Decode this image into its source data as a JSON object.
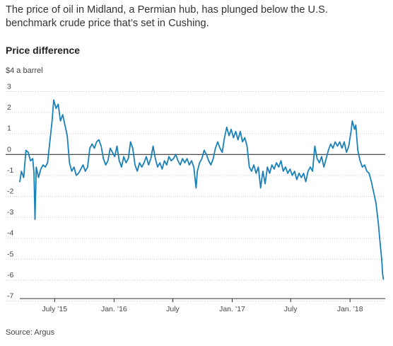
{
  "headline": {
    "dek": "The price of oil in Midland, a Permian hub, has plunged below the U.S. benchmark crude price that’s set in Cushing."
  },
  "section_title": "Price difference",
  "unit_label": "$4 a barrel",
  "source": "Source: Argus",
  "colors": {
    "line": "#1a80b8",
    "grid": "#cccccc",
    "zero_line": "#333333",
    "axis": "#333333",
    "text": "#333333"
  },
  "chart_data": {
    "type": "line",
    "title": "Price difference",
    "ylabel": "$4 a barrel",
    "xlabel": "",
    "ylim": [
      -7,
      4
    ],
    "xlim": [
      "2015-03-15",
      "2018-04-20"
    ],
    "grid": true,
    "y_ticks": [
      3,
      2,
      1,
      0,
      -1,
      -2,
      -3,
      -4,
      -5,
      -6,
      -7
    ],
    "x_ticks": [
      {
        "date": "2015-07-01",
        "label": "July ’15"
      },
      {
        "date": "2016-01-01",
        "label": "Jan. ’16"
      },
      {
        "date": "2016-07-01",
        "label": "July"
      },
      {
        "date": "2017-01-01",
        "label": "Jan. ’17"
      },
      {
        "date": "2017-07-01",
        "label": "July"
      },
      {
        "date": "2018-01-01",
        "label": "Jan. ’18"
      }
    ],
    "series": [
      {
        "name": "",
        "points": [
          [
            "2015-03-15",
            -1.3
          ],
          [
            "2015-03-20",
            -0.8
          ],
          [
            "2015-03-27",
            -1.1
          ],
          [
            "2015-04-03",
            0.2
          ],
          [
            "2015-04-10",
            0.1
          ],
          [
            "2015-04-17",
            -0.3
          ],
          [
            "2015-04-24",
            -0.2
          ],
          [
            "2015-04-28",
            -0.9
          ],
          [
            "2015-05-01",
            -3.1
          ],
          [
            "2015-05-05",
            -0.6
          ],
          [
            "2015-05-12",
            -1.1
          ],
          [
            "2015-05-19",
            -0.7
          ],
          [
            "2015-05-26",
            -0.5
          ],
          [
            "2015-06-02",
            -0.6
          ],
          [
            "2015-06-09",
            -0.4
          ],
          [
            "2015-06-16",
            0.6
          ],
          [
            "2015-06-23",
            1.6
          ],
          [
            "2015-06-28",
            2.6
          ],
          [
            "2015-07-05",
            2.2
          ],
          [
            "2015-07-12",
            2.4
          ],
          [
            "2015-07-19",
            1.6
          ],
          [
            "2015-07-26",
            1.9
          ],
          [
            "2015-08-02",
            1.4
          ],
          [
            "2015-08-09",
            0.9
          ],
          [
            "2015-08-16",
            -0.4
          ],
          [
            "2015-08-23",
            -0.8
          ],
          [
            "2015-08-30",
            -0.6
          ],
          [
            "2015-09-06",
            -1.0
          ],
          [
            "2015-09-13",
            -0.9
          ],
          [
            "2015-09-20",
            -0.7
          ],
          [
            "2015-09-27",
            -0.5
          ],
          [
            "2015-10-04",
            -0.8
          ],
          [
            "2015-10-11",
            -0.6
          ],
          [
            "2015-10-18",
            0.3
          ],
          [
            "2015-10-25",
            0.5
          ],
          [
            "2015-11-01",
            0.3
          ],
          [
            "2015-11-08",
            0.6
          ],
          [
            "2015-11-15",
            0.7
          ],
          [
            "2015-11-22",
            0.4
          ],
          [
            "2015-11-29",
            -0.2
          ],
          [
            "2015-12-06",
            -0.5
          ],
          [
            "2015-12-13",
            -0.3
          ],
          [
            "2015-12-20",
            0.3
          ],
          [
            "2015-12-27",
            0.1
          ],
          [
            "2016-01-03",
            -0.1
          ],
          [
            "2016-01-10",
            0.4
          ],
          [
            "2016-01-17",
            -0.3
          ],
          [
            "2016-01-24",
            -0.6
          ],
          [
            "2016-01-31",
            -0.1
          ],
          [
            "2016-02-07",
            -0.4
          ],
          [
            "2016-02-14",
            -0.2
          ],
          [
            "2016-02-21",
            0.6
          ],
          [
            "2016-02-28",
            0.3
          ],
          [
            "2016-03-06",
            -0.5
          ],
          [
            "2016-03-13",
            -0.8
          ],
          [
            "2016-03-20",
            -0.4
          ],
          [
            "2016-03-27",
            -0.6
          ],
          [
            "2016-04-03",
            -0.4
          ],
          [
            "2016-04-10",
            -0.1
          ],
          [
            "2016-04-17",
            -0.5
          ],
          [
            "2016-04-24",
            -0.2
          ],
          [
            "2016-05-01",
            0.4
          ],
          [
            "2016-05-08",
            -0.2
          ],
          [
            "2016-05-15",
            -0.6
          ],
          [
            "2016-05-22",
            -0.4
          ],
          [
            "2016-05-29",
            -0.7
          ],
          [
            "2016-06-05",
            -0.3
          ],
          [
            "2016-06-12",
            -0.5
          ],
          [
            "2016-06-19",
            -0.1
          ],
          [
            "2016-06-26",
            -0.3
          ],
          [
            "2016-07-03",
            -0.2
          ],
          [
            "2016-07-10",
            0.0
          ],
          [
            "2016-07-17",
            -0.3
          ],
          [
            "2016-07-24",
            -0.5
          ],
          [
            "2016-07-31",
            -0.2
          ],
          [
            "2016-08-07",
            -0.4
          ],
          [
            "2016-08-14",
            -0.2
          ],
          [
            "2016-08-21",
            -0.5
          ],
          [
            "2016-08-28",
            -0.3
          ],
          [
            "2016-09-04",
            -0.6
          ],
          [
            "2016-09-11",
            -1.6
          ],
          [
            "2016-09-15",
            -0.8
          ],
          [
            "2016-09-22",
            -0.4
          ],
          [
            "2016-09-29",
            -0.2
          ],
          [
            "2016-10-06",
            0.2
          ],
          [
            "2016-10-13",
            0.0
          ],
          [
            "2016-10-20",
            -0.3
          ],
          [
            "2016-10-27",
            -0.5
          ],
          [
            "2016-11-03",
            -0.2
          ],
          [
            "2016-11-10",
            0.3
          ],
          [
            "2016-11-17",
            0.6
          ],
          [
            "2016-11-24",
            0.3
          ],
          [
            "2016-12-01",
            0.1
          ],
          [
            "2016-12-08",
            0.8
          ],
          [
            "2016-12-15",
            1.3
          ],
          [
            "2016-12-22",
            0.9
          ],
          [
            "2016-12-29",
            1.2
          ],
          [
            "2017-01-05",
            0.8
          ],
          [
            "2017-01-12",
            1.1
          ],
          [
            "2017-01-19",
            0.7
          ],
          [
            "2017-01-26",
            1.1
          ],
          [
            "2017-02-02",
            0.6
          ],
          [
            "2017-02-09",
            0.8
          ],
          [
            "2017-02-16",
            0.4
          ],
          [
            "2017-02-23",
            -0.6
          ],
          [
            "2017-03-02",
            -0.8
          ],
          [
            "2017-03-09",
            -0.5
          ],
          [
            "2017-03-16",
            -0.9
          ],
          [
            "2017-03-23",
            -0.6
          ],
          [
            "2017-03-30",
            -1.6
          ],
          [
            "2017-04-06",
            -0.8
          ],
          [
            "2017-04-13",
            -1.4
          ],
          [
            "2017-04-20",
            -0.6
          ],
          [
            "2017-04-27",
            -0.9
          ],
          [
            "2017-05-04",
            -0.5
          ],
          [
            "2017-05-11",
            -0.7
          ],
          [
            "2017-05-18",
            -0.4
          ],
          [
            "2017-05-25",
            -0.6
          ],
          [
            "2017-06-01",
            -0.3
          ],
          [
            "2017-06-08",
            -0.8
          ],
          [
            "2017-06-15",
            -0.6
          ],
          [
            "2017-06-22",
            -0.9
          ],
          [
            "2017-06-29",
            -0.7
          ],
          [
            "2017-07-06",
            -1.0
          ],
          [
            "2017-07-13",
            -0.8
          ],
          [
            "2017-07-20",
            -1.2
          ],
          [
            "2017-07-27",
            -0.9
          ],
          [
            "2017-08-03",
            -1.1
          ],
          [
            "2017-08-10",
            -0.9
          ],
          [
            "2017-08-17",
            -1.3
          ],
          [
            "2017-08-24",
            -0.8
          ],
          [
            "2017-08-31",
            -0.6
          ],
          [
            "2017-09-07",
            -0.8
          ],
          [
            "2017-09-14",
            0.4
          ],
          [
            "2017-09-21",
            -0.2
          ],
          [
            "2017-09-28",
            -0.4
          ],
          [
            "2017-10-05",
            -0.1
          ],
          [
            "2017-10-12",
            -0.6
          ],
          [
            "2017-10-19",
            -0.2
          ],
          [
            "2017-10-26",
            0.2
          ],
          [
            "2017-11-02",
            0.5
          ],
          [
            "2017-11-09",
            0.3
          ],
          [
            "2017-11-16",
            0.6
          ],
          [
            "2017-11-23",
            0.4
          ],
          [
            "2017-11-30",
            0.6
          ],
          [
            "2017-12-07",
            0.3
          ],
          [
            "2017-12-14",
            0.6
          ],
          [
            "2017-12-21",
            0.1
          ],
          [
            "2017-12-28",
            0.4
          ],
          [
            "2018-01-04",
            1.1
          ],
          [
            "2018-01-08",
            1.6
          ],
          [
            "2018-01-15",
            1.2
          ],
          [
            "2018-01-19",
            1.4
          ],
          [
            "2018-01-25",
            0.2
          ],
          [
            "2018-02-01",
            -0.3
          ],
          [
            "2018-02-08",
            -0.6
          ],
          [
            "2018-02-15",
            -0.5
          ],
          [
            "2018-02-22",
            -0.8
          ],
          [
            "2018-03-01",
            -0.9
          ],
          [
            "2018-03-08",
            -1.3
          ],
          [
            "2018-03-15",
            -1.8
          ],
          [
            "2018-03-22",
            -2.3
          ],
          [
            "2018-03-29",
            -3.2
          ],
          [
            "2018-04-04",
            -4.2
          ],
          [
            "2018-04-09",
            -5.0
          ],
          [
            "2018-04-12",
            -5.7
          ],
          [
            "2018-04-14",
            -5.95
          ]
        ]
      }
    ]
  }
}
